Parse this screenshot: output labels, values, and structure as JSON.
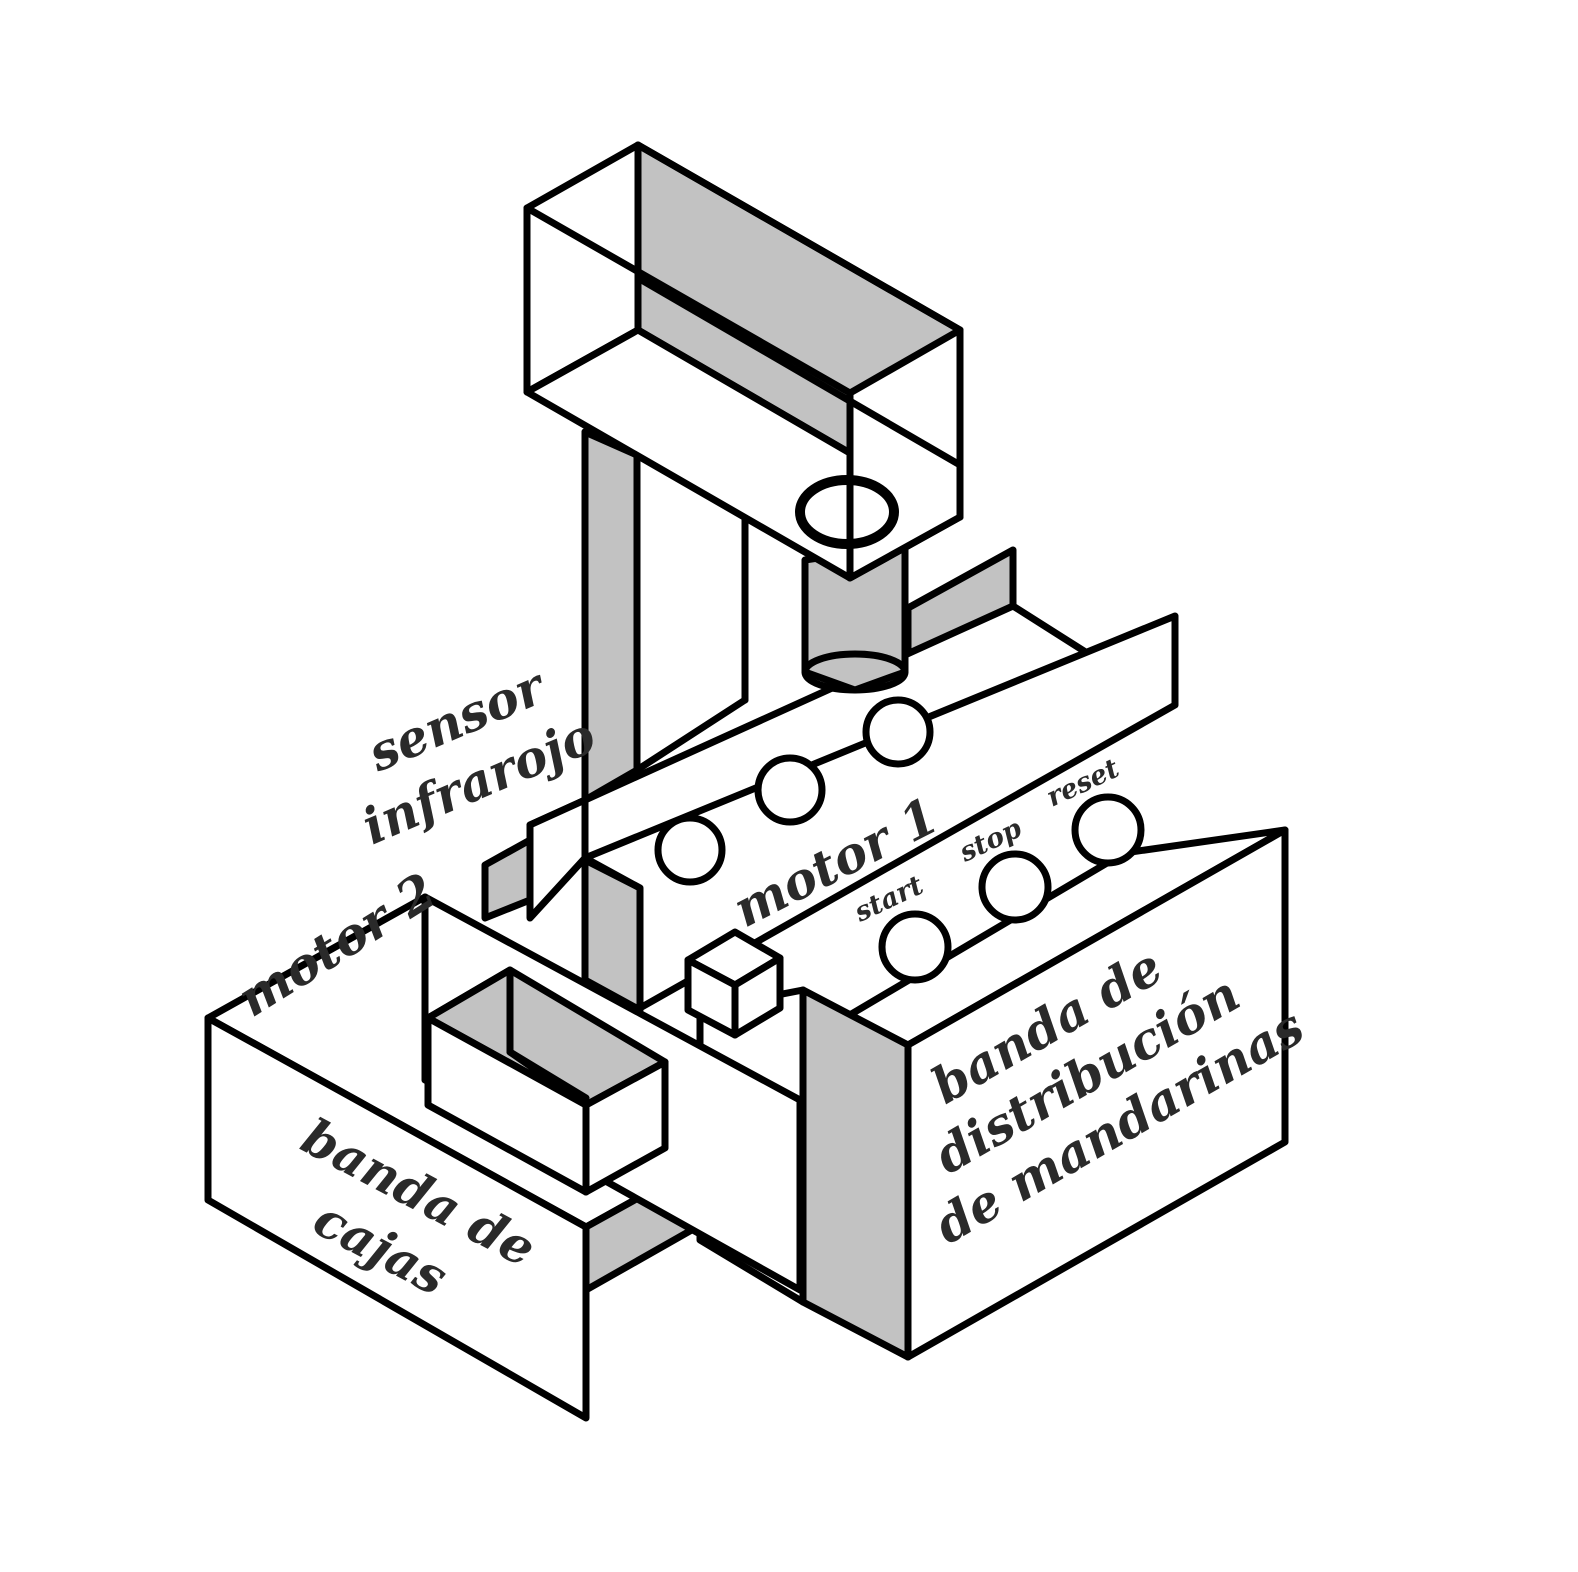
{
  "labels": {
    "sensor_line1": "sensor",
    "sensor_line2": "infrarojo",
    "motor1": "motor 1",
    "motor2": "motor 2",
    "start": "start",
    "stop": "stop",
    "reset": "reset",
    "dist_line1": "banda de",
    "dist_line2": "distribución",
    "dist_line3": "de mandarinas",
    "cajas_line1": "banda de",
    "cajas_line2": "cajas"
  },
  "colors": {
    "shade": "#c2c2c2",
    "stroke": "#000000",
    "text": "#2a2a2a"
  }
}
